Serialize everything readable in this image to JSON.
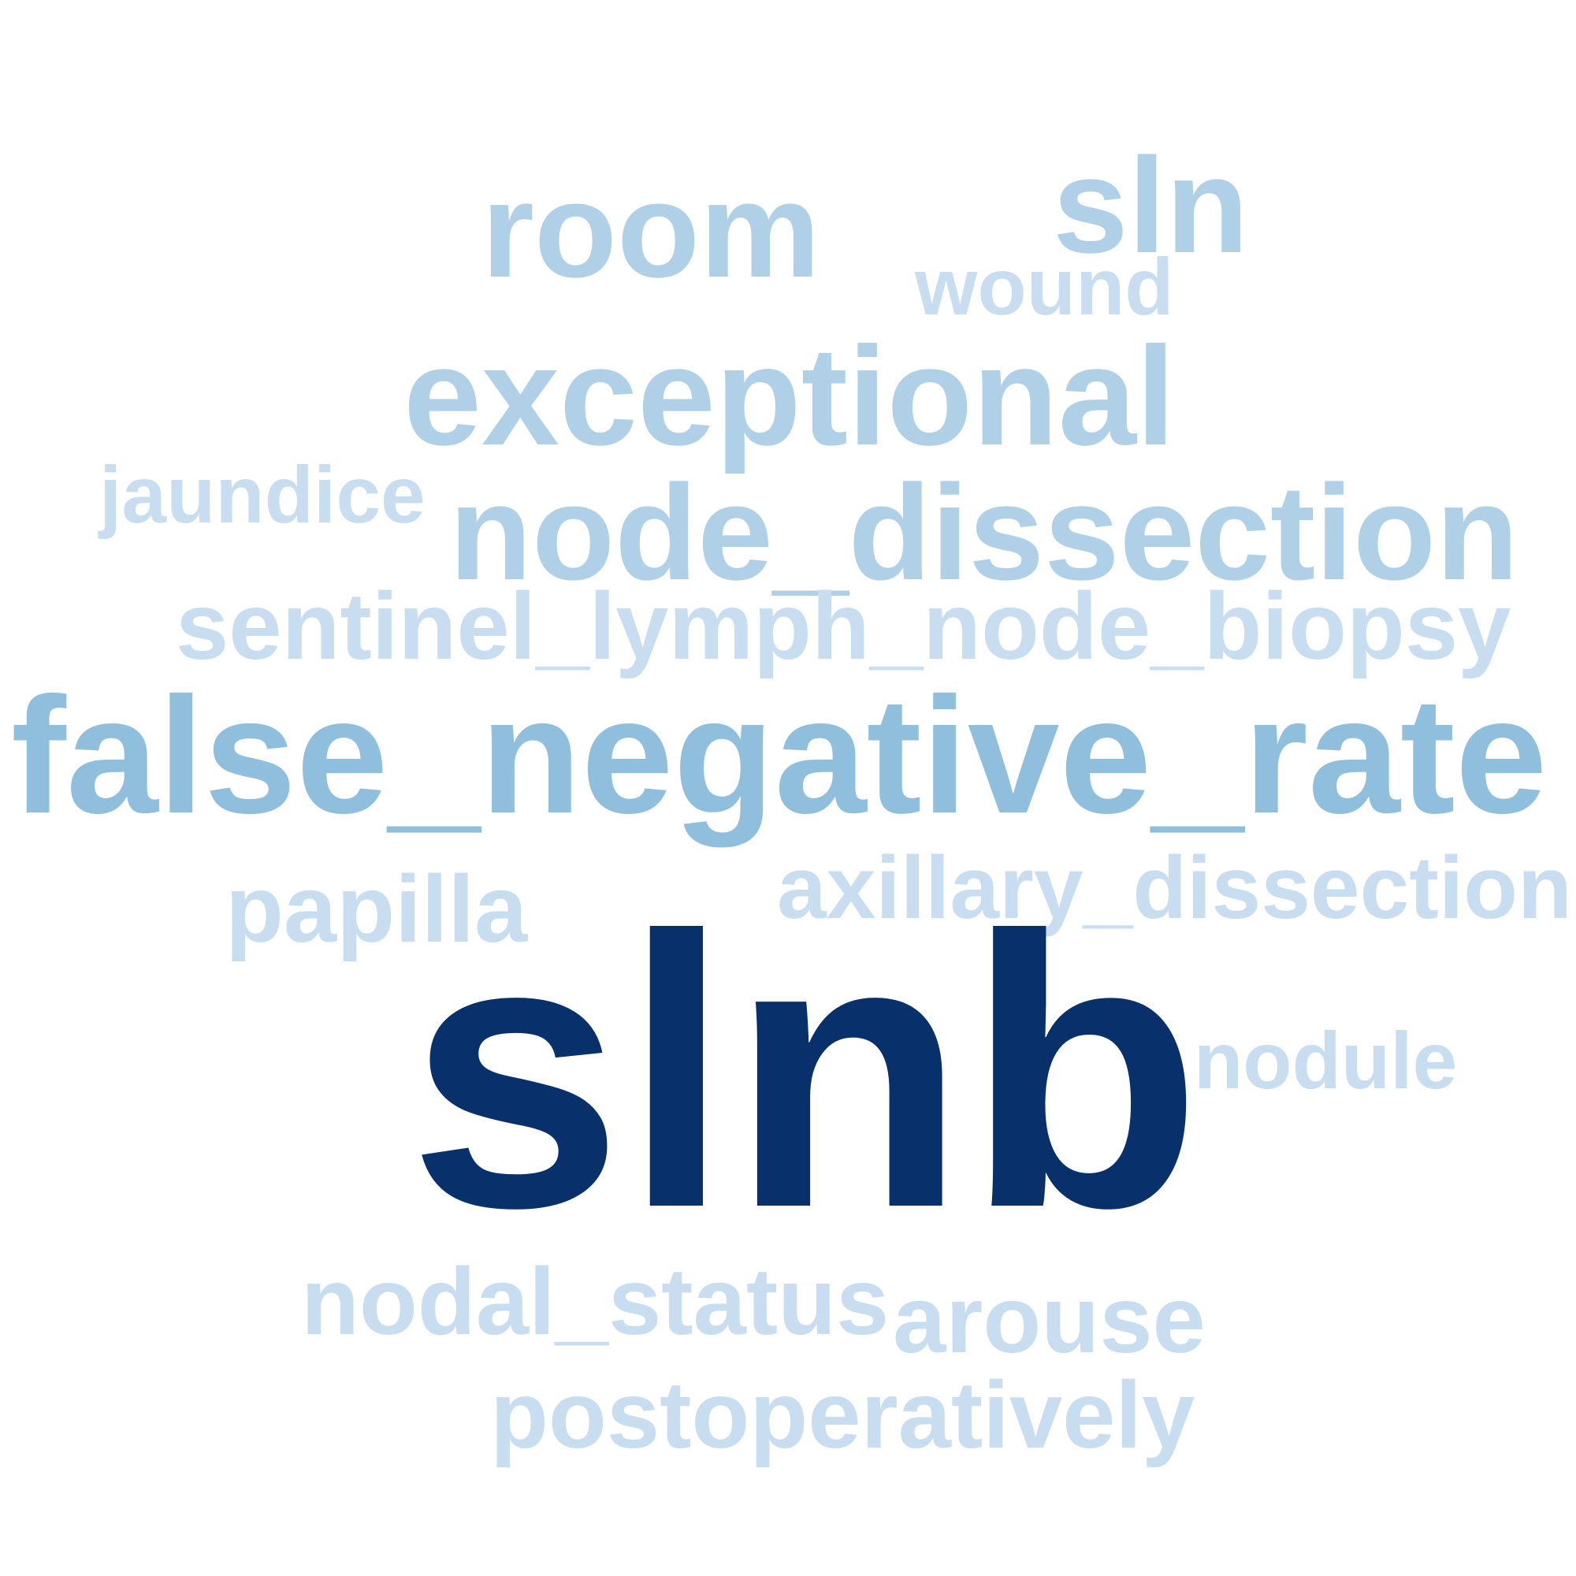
{
  "words": {
    "slnb": "slnb",
    "false_negative_rate": "false_negative_rate",
    "exceptional": "exceptional",
    "node_dissection": "node_dissection",
    "room": "room",
    "sln": "sln",
    "sentinel_lymph_node_biopsy": "sentinel_lymph_node_biopsy",
    "axillary_dissection": "axillary_dissection",
    "nodal_status": "nodal_status",
    "arouse": "arouse",
    "postoperatively": "postoperatively",
    "papilla": "papilla",
    "jaundice": "jaundice",
    "wound": "wound",
    "nodule": "nodule"
  },
  "colors": {
    "dark": "#08306b",
    "mid": "#8fbfdc",
    "light": "#afd0e6",
    "pale": "#c9ddf0"
  }
}
